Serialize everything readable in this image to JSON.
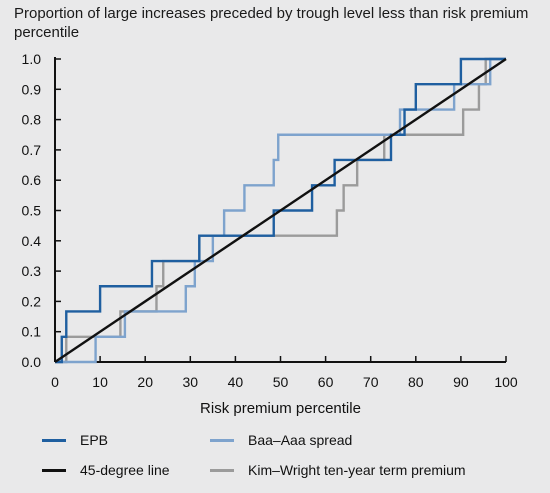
{
  "chart_data": {
    "type": "line",
    "title": "Proportion of large increases preceded by trough level less than risk premium percentile",
    "xlabel": "Risk premium percentile",
    "ylabel": "",
    "xlim": [
      0,
      100
    ],
    "ylim": [
      0,
      1.0
    ],
    "x_ticks": [
      0,
      10,
      20,
      30,
      40,
      50,
      60,
      70,
      80,
      90,
      100
    ],
    "y_ticks": [
      0.0,
      0.1,
      0.2,
      0.3,
      0.4,
      0.5,
      0.6,
      0.7,
      0.8,
      0.9,
      1.0
    ],
    "x_tick_labels": [
      "0",
      "10",
      "20",
      "30",
      "40",
      "50",
      "60",
      "70",
      "80",
      "90",
      "100"
    ],
    "y_tick_labels": [
      "0.0",
      "0.1",
      "0.2",
      "0.3",
      "0.4",
      "0.5",
      "0.6",
      "0.7",
      "0.8",
      "0.9",
      "1.0"
    ],
    "grid": false,
    "legend_position": "bottom",
    "series": [
      {
        "name": "EPB",
        "color": "#1f5fa0",
        "step": true,
        "steps_x": [
          0,
          1.5,
          2.5,
          10,
          21.5,
          25,
          32,
          35.5,
          48.5,
          57,
          62,
          74.5,
          77.5,
          80,
          90,
          99.5,
          100
        ],
        "steps_y": [
          0.0,
          0.083,
          0.167,
          0.25,
          0.333,
          0.333,
          0.417,
          0.417,
          0.5,
          0.583,
          0.667,
          0.75,
          0.833,
          0.917,
          1.0,
          1.0,
          1.0
        ]
      },
      {
        "name": "45-degree line",
        "color": "#111111",
        "step": false,
        "x": [
          0,
          100
        ],
        "y": [
          0,
          1.0
        ]
      },
      {
        "name": "Baa–Aaa spread",
        "color": "#7ea3cd",
        "step": true,
        "steps_x": [
          0,
          9,
          15.5,
          29,
          31,
          35,
          37.5,
          42,
          48.5,
          49.5,
          76.5,
          88.5,
          91,
          96.5,
          100
        ],
        "steps_y": [
          0.0,
          0.083,
          0.167,
          0.25,
          0.333,
          0.417,
          0.5,
          0.583,
          0.667,
          0.75,
          0.833,
          0.917,
          0.917,
          1.0,
          1.0
        ]
      },
      {
        "name": "Kim–Wright ten-year term premium",
        "color": "#9b9b9b",
        "step": true,
        "steps_x": [
          0,
          2.5,
          14.5,
          22.5,
          24,
          32,
          41.5,
          62.5,
          64,
          67,
          73,
          76,
          90.5,
          94,
          95.5,
          100
        ],
        "steps_y": [
          0.0,
          0.083,
          0.167,
          0.25,
          0.333,
          0.417,
          0.417,
          0.5,
          0.583,
          0.667,
          0.75,
          0.75,
          0.833,
          0.917,
          1.0,
          1.0
        ]
      }
    ]
  }
}
